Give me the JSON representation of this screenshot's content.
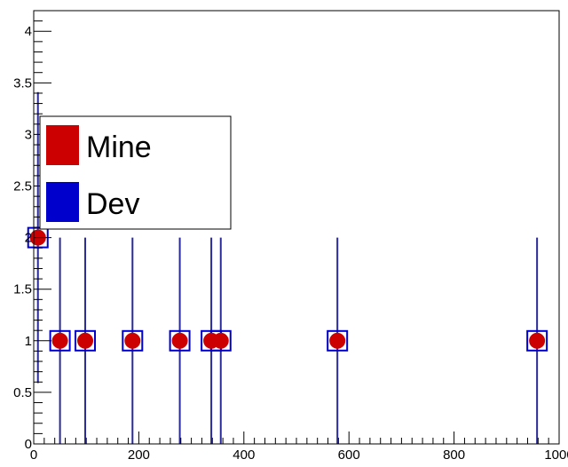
{
  "chart_data": {
    "type": "scatter",
    "title": "",
    "xlabel": "",
    "ylabel": "",
    "xlim": [
      0,
      1000
    ],
    "ylim": [
      0,
      4.2
    ],
    "xticks": [
      0,
      200,
      400,
      600,
      800,
      1000
    ],
    "xtick_labels": [
      "0",
      "200",
      "400",
      "600",
      "800",
      "1000"
    ],
    "yticks": [
      0,
      0.5,
      1,
      1.5,
      2,
      2.5,
      3,
      3.5,
      4
    ],
    "ytick_labels": [
      "0",
      "0.5",
      "1",
      "1.5",
      "2",
      "2.5",
      "3",
      "3.5",
      "4"
    ],
    "grid": false,
    "legend": {
      "placement": "top-left"
    },
    "series": [
      {
        "name": "Mine",
        "color": "#cc0000",
        "marker": "filled-circle",
        "x": [
          8,
          50,
          98,
          188,
          278,
          338,
          356,
          578,
          958
        ],
        "y": [
          2,
          1,
          1,
          1,
          1,
          1,
          1,
          1,
          1
        ],
        "y_err": [
          1.41,
          1,
          1,
          1,
          1,
          1,
          1,
          1,
          1
        ]
      },
      {
        "name": "Dev",
        "color": "#0000cc",
        "marker": "open-square",
        "x": [
          8,
          50,
          98,
          188,
          278,
          338,
          356,
          578,
          958
        ],
        "y": [
          2,
          1,
          1,
          1,
          1,
          1,
          1,
          1,
          1
        ],
        "y_err": [
          1.41,
          1,
          1,
          1,
          1,
          1,
          1,
          1,
          1
        ]
      }
    ]
  }
}
